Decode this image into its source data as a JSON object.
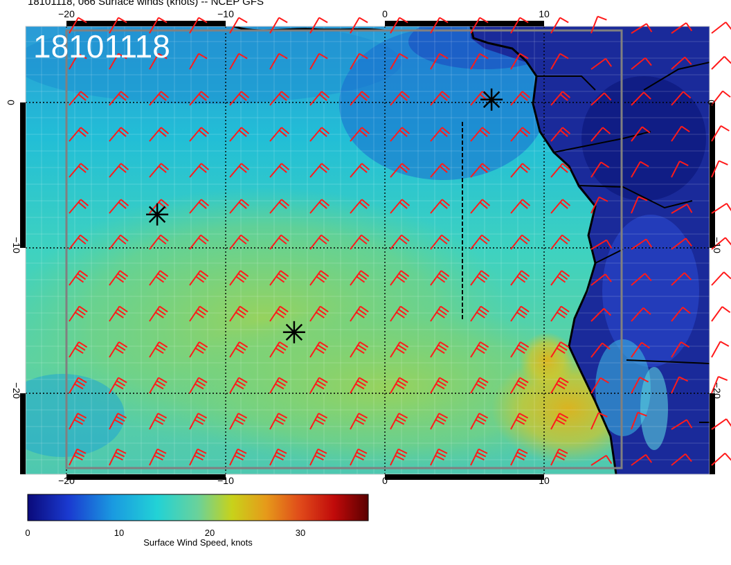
{
  "title": "18101118, 066 Surface winds (knots) -- NCEP GFS",
  "date_label": "18101118",
  "map": {
    "lon_ticks_top": [
      "−20",
      "−10",
      "0",
      "10"
    ],
    "lon_ticks_bottom": [
      "−20",
      "−10",
      "0",
      "10"
    ],
    "lat_ticks": [
      "0",
      "−10",
      "−20"
    ],
    "storm_markers": [
      {
        "lon": -14.3,
        "lat": -7.7
      },
      {
        "lon": -5.7,
        "lat": -15.8
      },
      {
        "lon": 6.7,
        "lat": 0.2
      }
    ],
    "colors": {
      "barb": "#ff1a1a",
      "land": "#1a2a9a",
      "ocean_mid": "#22c8d6",
      "ocean_high": "#c8d24a",
      "coast": "#000000"
    }
  },
  "colorbar": {
    "label": "Surface Wind Speed, knots",
    "ticks": [
      "0",
      "10",
      "20",
      "30"
    ],
    "range": [
      0,
      37
    ]
  }
}
